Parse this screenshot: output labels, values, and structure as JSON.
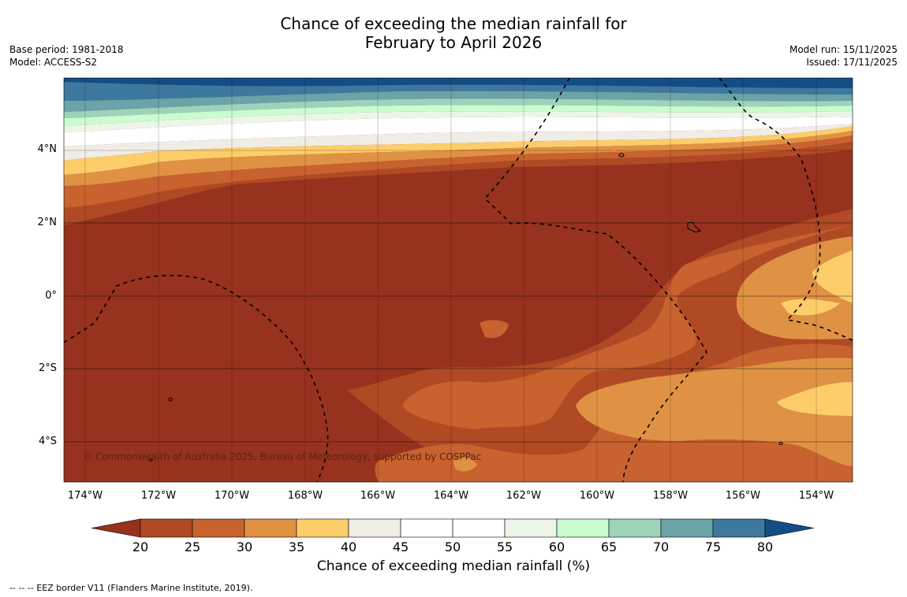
{
  "title_line1": "Chance of exceeding the median rainfall for",
  "title_line2": "February to April 2026",
  "meta": {
    "base_period": "Base period: 1981-2018",
    "model": "Model: ACCESS-S2",
    "model_run": "Model run: 15/11/2025",
    "issued": "Issued: 17/11/2025"
  },
  "lat_labels": [
    "4°N",
    "2°N",
    "0°",
    "2°S",
    "4°S"
  ],
  "lon_labels": [
    "174°W",
    "172°W",
    "170°W",
    "168°W",
    "166°W",
    "164°W",
    "162°W",
    "160°W",
    "158°W",
    "156°W",
    "154°W"
  ],
  "copyright": "© Commonwealth of Australia 2025, Bureau of Meteorology, supported by COSPPac",
  "colorbar": {
    "title": "Chance of exceeding median rainfall (%)",
    "ticks": [
      "20",
      "25",
      "30",
      "35",
      "40",
      "45",
      "50",
      "55",
      "60",
      "65",
      "70",
      "75",
      "80"
    ],
    "colors": [
      "#97321e",
      "#b04a25",
      "#c8622e",
      "#e09244",
      "#fdcd6a",
      "#f0ece6",
      "#ffffff",
      "#ffffff",
      "#ebf6e8",
      "#c9fdcf",
      "#9dd2bb",
      "#6aa3a8",
      "#3d789e",
      "#124d86"
    ]
  },
  "eez_note": "--  --  -- EEZ border V11 (Flanders Marine Institute, 2019)."
}
